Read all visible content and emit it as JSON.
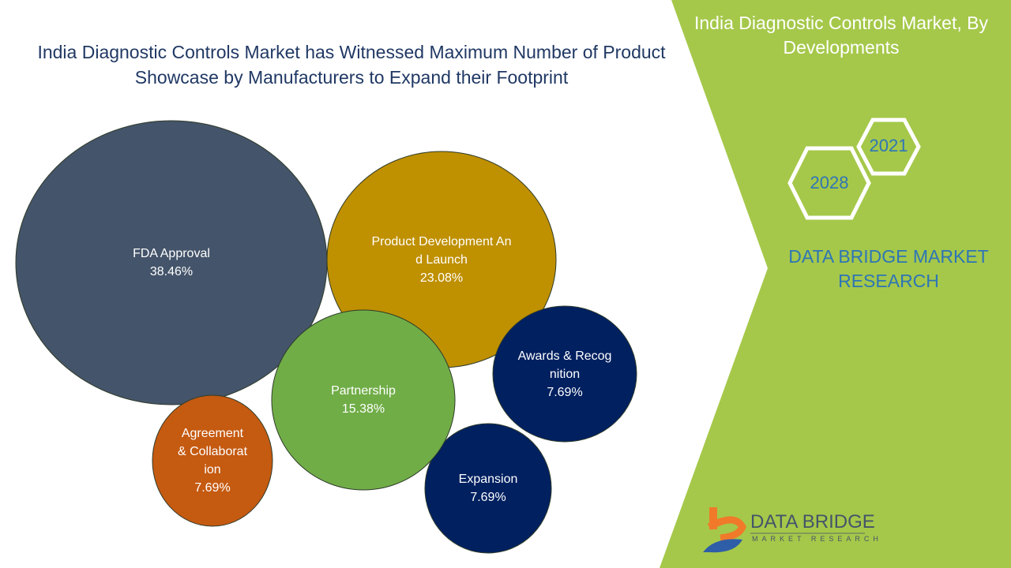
{
  "header": {
    "title": "India Diagnostic Controls Market has Witnessed Maximum Number of Product Showcase by Manufacturers to Expand their Footprint"
  },
  "side": {
    "title": "India Diagnostic Controls Market, By Developments",
    "year_start": "2021",
    "year_end": "2028",
    "brand": "DATA BRIDGE MARKET RESEARCH",
    "logo_main": "DATA BRIDGE",
    "logo_sub": "MARKET RESEARCH"
  },
  "colors": {
    "green": "#a5c84a",
    "title": "#203864"
  },
  "chart_data": {
    "type": "bubble",
    "title": "India Diagnostic Controls Market has Witnessed Maximum Number of Product Showcase by Manufacturers to Expand their Footprint",
    "series": [
      {
        "name": "FDA Approval",
        "value": 38.46,
        "label": "38.46%",
        "color": "#44546a"
      },
      {
        "name": "Product Development And Launch",
        "value": 23.08,
        "label": "23.08%",
        "color": "#bf9000"
      },
      {
        "name": "Partnership",
        "value": 15.38,
        "label": "15.38%",
        "color": "#70ad47"
      },
      {
        "name": "Awards & Recognition",
        "value": 7.69,
        "label": "7.69%",
        "color": "#002060"
      },
      {
        "name": "Agreement & Collaboration",
        "value": 7.69,
        "label": "7.69%",
        "color": "#c55a11"
      },
      {
        "name": "Expansion",
        "value": 7.69,
        "label": "7.69%",
        "color": "#002060"
      }
    ]
  }
}
